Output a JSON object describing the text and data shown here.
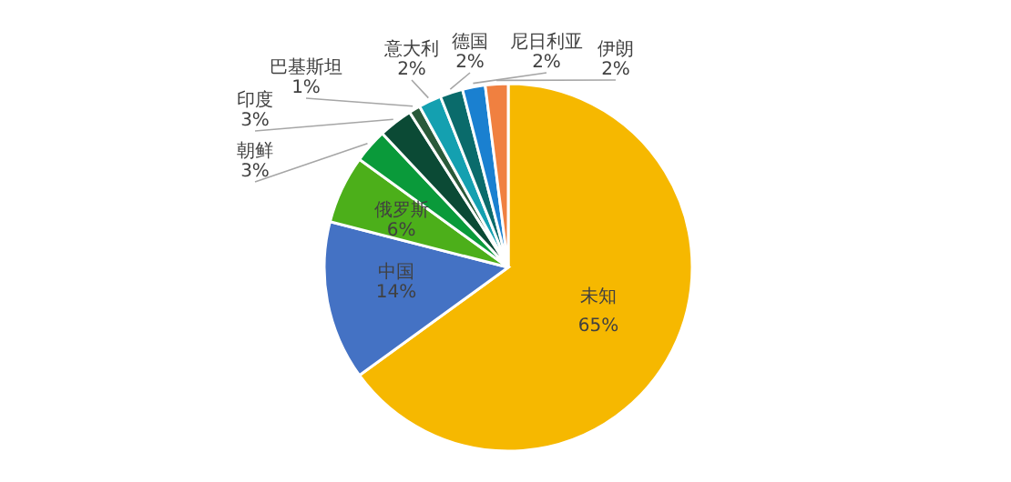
{
  "chart_data": {
    "type": "pie",
    "categories": [
      "未知",
      "中国",
      "俄罗斯",
      "朝鲜",
      "印度",
      "巴基斯坦",
      "意大利",
      "德国",
      "尼日利亚",
      "伊朗"
    ],
    "values": [
      65,
      14,
      6,
      3,
      3,
      1,
      2,
      2,
      2,
      2
    ],
    "colors": [
      "#f6b800",
      "#4472c4",
      "#4caf1a",
      "#0a9a3a",
      "#0b4a35",
      "#2a5a3a",
      "#14a0b0",
      "#0a6b6b",
      "#1a80d0",
      "#f08040"
    ],
    "value_labels": [
      "65%",
      "14%",
      "6%",
      "3%",
      "3%",
      "1%",
      "2%",
      "2%",
      "2%",
      "2%"
    ]
  }
}
